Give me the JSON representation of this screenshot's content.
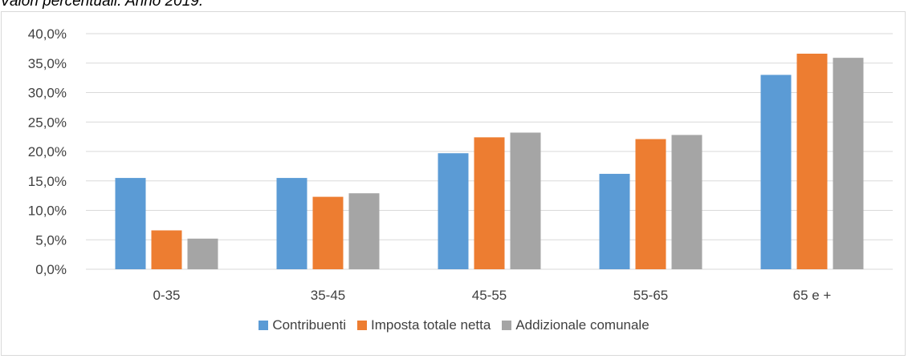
{
  "caption": "Valori percentuali. Anno 2019.",
  "chart_data": {
    "type": "bar",
    "title": "",
    "xlabel": "",
    "ylabel": "",
    "categories": [
      "0-35",
      "35-45",
      "45-55",
      "55-65",
      "65 e +"
    ],
    "ylim": [
      0,
      40
    ],
    "yticks": [
      "0,0%",
      "5,0%",
      "10,0%",
      "15,0%",
      "20,0%",
      "25,0%",
      "30,0%",
      "35,0%",
      "40,0%"
    ],
    "grid": true,
    "legend_position": "bottom",
    "series": [
      {
        "name": "Contribuenti",
        "color": "#5b9bd5",
        "values": [
          15.5,
          15.5,
          19.7,
          16.2,
          33.0
        ]
      },
      {
        "name": "Imposta totale netta",
        "color": "#ed7d31",
        "values": [
          6.6,
          12.3,
          22.4,
          22.1,
          36.6
        ]
      },
      {
        "name": "Addizionale comunale",
        "color": "#a5a5a5",
        "values": [
          5.2,
          12.9,
          23.2,
          22.8,
          35.9
        ]
      }
    ]
  }
}
